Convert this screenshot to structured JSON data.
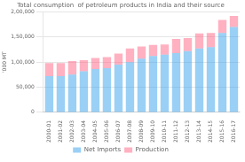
{
  "chart_data": {
    "type": "bar",
    "stacked": true,
    "title": "Total consumption  of petroleum products in India and their source",
    "ylabel": "'000 MT",
    "categories": [
      "2000-01",
      "2001-02",
      "2002-03",
      "2003-04",
      "2004-05",
      "2005-06",
      "2006-07",
      "2007-08",
      "2008-09",
      "2009-10",
      "2010-11",
      "2011-12",
      "2012-13",
      "2013-14",
      "2014-15",
      "2015-16",
      "2016-17"
    ],
    "series": [
      {
        "name": "Net Imports",
        "values": [
          72000,
          72000,
          75000,
          82000,
          86000,
          88000,
          95000,
          100000,
          107000,
          112000,
          115000,
          118000,
          122000,
          127000,
          130000,
          158000,
          170000
        ]
      },
      {
        "name": "Production",
        "values": [
          26000,
          26000,
          27000,
          22000,
          22000,
          22000,
          22000,
          27000,
          24000,
          22000,
          20000,
          28000,
          26000,
          30000,
          28000,
          26000,
          22000
        ]
      }
    ],
    "ylim": [
      0,
      200000
    ],
    "yticks": [
      0,
      {
        "value": 50000,
        "label": "50,000"
      },
      {
        "value": 100000,
        "label": "1,00,000"
      },
      {
        "value": 150000,
        "label": "1,50,000"
      },
      {
        "value": 200000,
        "label": "2,00,000"
      }
    ],
    "grid": true,
    "legend": "bottom"
  }
}
